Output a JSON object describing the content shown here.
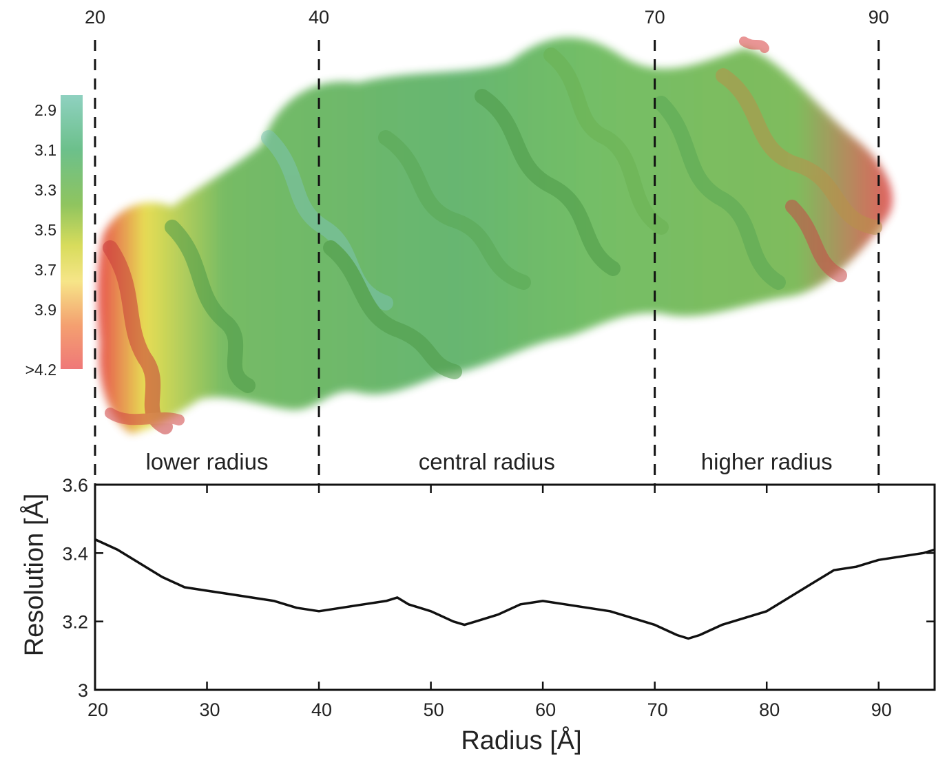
{
  "colorbar": {
    "labels": [
      "2.9",
      "3.1",
      "3.3",
      "3.5",
      "3.7",
      "3.9",
      ">4.2"
    ],
    "colors": [
      "#8fd1c0",
      "#6cc08b",
      "#8fc45f",
      "#d8dc5c",
      "#f6e588",
      "#f4a070",
      "#ef7878"
    ]
  },
  "density_map": {
    "dashed_lines": [
      "20",
      "40",
      "70",
      "90"
    ],
    "regions": [
      "lower radius",
      "central radius",
      "higher radius"
    ],
    "colors": {
      "low_res": "#e64444",
      "mid_res": "#e6dc4c",
      "high_res": "#5fb36a",
      "best_res": "#8fcfc0"
    }
  },
  "chart_data": {
    "type": "line",
    "xlabel": "Radius [Å]",
    "ylabel": "Resolution [Å]",
    "xlim": [
      20,
      95
    ],
    "ylim": [
      3,
      3.6
    ],
    "xticks": [
      "20",
      "30",
      "40",
      "50",
      "60",
      "70",
      "80",
      "90"
    ],
    "yticks": [
      "3",
      "3.2",
      "3.4",
      "3.6"
    ],
    "x": [
      20,
      22,
      24,
      26,
      28,
      30,
      32,
      34,
      36,
      38,
      40,
      42,
      44,
      46,
      47,
      48,
      50,
      52,
      53,
      54,
      56,
      58,
      60,
      62,
      64,
      66,
      68,
      70,
      72,
      73,
      74,
      76,
      78,
      80,
      82,
      84,
      86,
      88,
      90,
      92,
      94,
      95
    ],
    "y": [
      3.44,
      3.41,
      3.37,
      3.33,
      3.3,
      3.29,
      3.28,
      3.27,
      3.26,
      3.24,
      3.23,
      3.24,
      3.25,
      3.26,
      3.27,
      3.25,
      3.23,
      3.2,
      3.19,
      3.2,
      3.22,
      3.25,
      3.26,
      3.25,
      3.24,
      3.23,
      3.21,
      3.19,
      3.16,
      3.15,
      3.16,
      3.19,
      3.21,
      3.23,
      3.27,
      3.31,
      3.35,
      3.36,
      3.38,
      3.39,
      3.4,
      3.41
    ],
    "line_color": "#111111",
    "grid": false
  }
}
